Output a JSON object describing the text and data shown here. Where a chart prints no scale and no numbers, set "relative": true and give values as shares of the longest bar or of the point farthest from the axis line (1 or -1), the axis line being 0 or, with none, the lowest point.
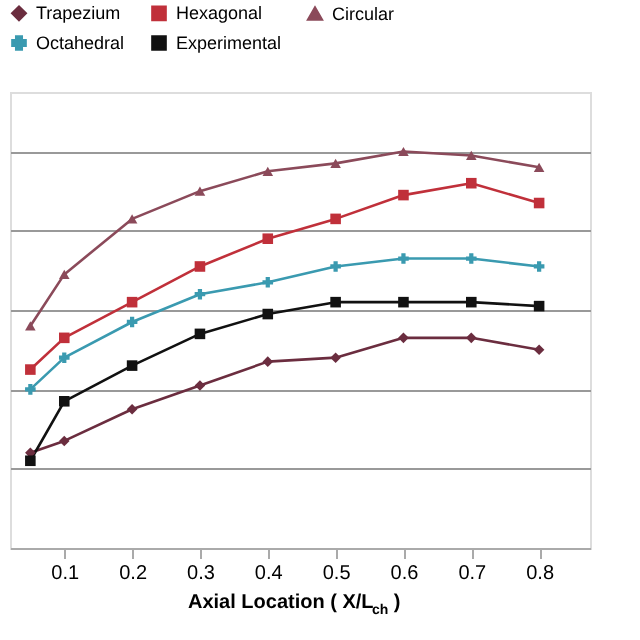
{
  "chart_data": {
    "type": "line",
    "relative": true,
    "xlabel": "Axial Location ( X/L$_{ch}$ )",
    "x": [
      0.05,
      0.1,
      0.2,
      0.3,
      0.4,
      0.5,
      0.6,
      0.7,
      0.8
    ],
    "xlim": [
      0.02,
      0.875
    ],
    "xticks": [
      0.1,
      0.2,
      0.3,
      0.4,
      0.5,
      0.6,
      0.7,
      0.8
    ],
    "grid": "y",
    "legend": "top",
    "tick_labels": "x",
    "line_style": "solid",
    "series": [
      {
        "name": "Trapezium",
        "color": "#6b2d3f",
        "marker": "diamond",
        "values": [
          0.24,
          0.27,
          0.35,
          0.41,
          0.47,
          0.48,
          0.53,
          0.53,
          0.5
        ]
      },
      {
        "name": "Hexagonal",
        "color": "#c0303a",
        "marker": "square",
        "values": [
          0.45,
          0.53,
          0.62,
          0.71,
          0.78,
          0.83,
          0.89,
          0.92,
          0.87
        ]
      },
      {
        "name": "Circular",
        "color": "#8b4a5a",
        "marker": "triangle",
        "values": [
          0.56,
          0.69,
          0.83,
          0.9,
          0.95,
          0.97,
          1.0,
          0.99,
          0.96
        ]
      },
      {
        "name": "Octahedral",
        "color": "#3a9ab0",
        "marker": "cross",
        "values": [
          0.4,
          0.48,
          0.57,
          0.64,
          0.67,
          0.71,
          0.73,
          0.73,
          0.71
        ]
      },
      {
        "name": "Experimental",
        "color": "#111111",
        "marker": "square",
        "values": [
          0.22,
          0.37,
          0.46,
          0.54,
          0.59,
          0.62,
          0.62,
          0.62,
          0.61
        ]
      }
    ]
  }
}
